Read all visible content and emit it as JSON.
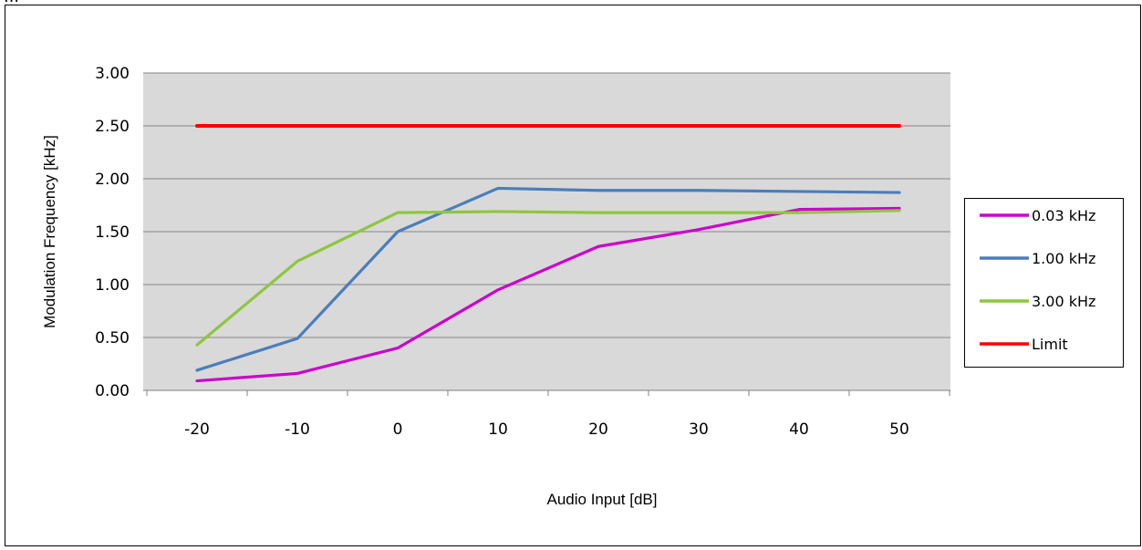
{
  "header_fragment": "…",
  "chart_data": {
    "type": "line",
    "title": "",
    "xlabel": "Audio Input [dB]",
    "ylabel": "Modulation Frequency [kHz]",
    "x": [
      -20,
      -10,
      0,
      10,
      20,
      30,
      40,
      50
    ],
    "x_tick_labels": [
      "-20",
      "-10",
      "0",
      "10",
      "20",
      "30",
      "40",
      "50"
    ],
    "y_tick_labels": [
      "0.00",
      "0.50",
      "1.00",
      "1.50",
      "2.00",
      "2.50",
      "3.00"
    ],
    "ylim": [
      0,
      3
    ],
    "grid": true,
    "legend_position": "right",
    "series": [
      {
        "name": "0.03 kHz",
        "color": "#cc00cc",
        "values": [
          0.09,
          0.16,
          0.4,
          0.95,
          1.36,
          1.52,
          1.71,
          1.72
        ]
      },
      {
        "name": "1.00 kHz",
        "color": "#4a7ebb",
        "values": [
          0.19,
          0.49,
          1.5,
          1.91,
          1.89,
          1.89,
          1.88,
          1.87
        ]
      },
      {
        "name": "3.00 kHz",
        "color": "#8ec63f",
        "values": [
          0.43,
          1.22,
          1.68,
          1.69,
          1.68,
          1.68,
          1.68,
          1.7
        ]
      },
      {
        "name": "Limit",
        "color": "#ff0000",
        "values": [
          2.5,
          2.5,
          2.5,
          2.5,
          2.5,
          2.5,
          2.5,
          2.5
        ]
      }
    ]
  }
}
